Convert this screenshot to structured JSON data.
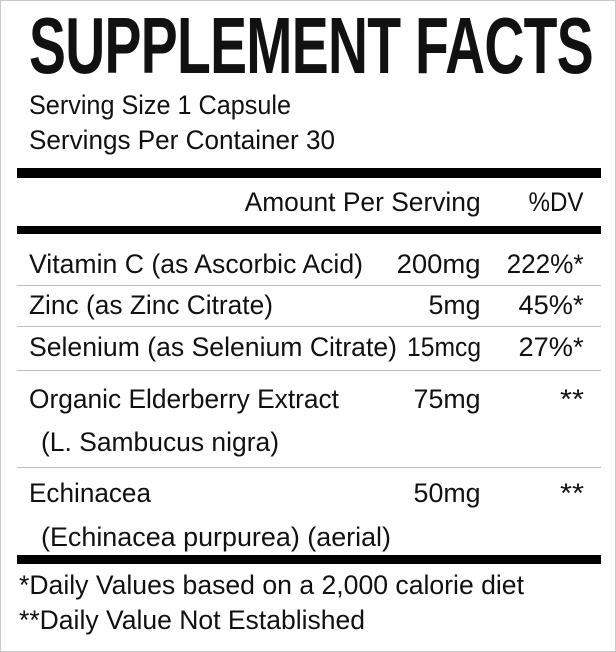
{
  "title": "SUPPLEMENT FACTS",
  "serving_size": "Serving Size 1 Capsule",
  "servings_per_container": "Servings Per Container 30",
  "header": {
    "amount": "Amount Per Serving",
    "dv": "%DV"
  },
  "rows": [
    {
      "name": "Vitamin C (as Ascorbic Acid)",
      "amount": "200mg",
      "dv": "222%*"
    },
    {
      "name": "Zinc (as Zinc Citrate)",
      "amount": "5mg",
      "dv": "45%*"
    },
    {
      "name": "Selenium (as Selenium Citrate)",
      "amount": "15mcg",
      "dv": "27%*"
    },
    {
      "name": "Organic Elderberry Extract",
      "sub": "(L. Sambucus nigra)",
      "amount": "75mg",
      "dv": "**"
    },
    {
      "name": "Echinacea",
      "sub": "(Echinacea purpurea) (aerial)",
      "amount": "50mg",
      "dv": "**"
    }
  ],
  "footnotes": [
    "*Daily Values based on a 2,000 calorie diet",
    "**Daily Value Not Established"
  ]
}
